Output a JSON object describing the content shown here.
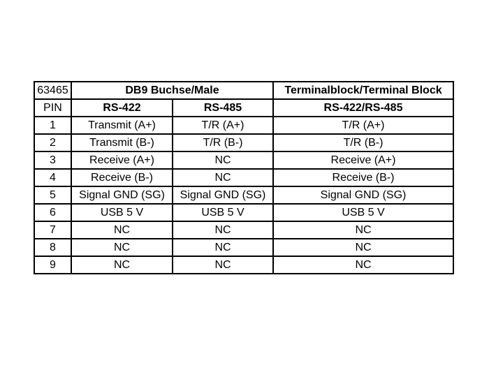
{
  "header": {
    "article": "63465",
    "db9_title": "DB9 Buchse/Male",
    "terminal_title": "Terminalblock/Terminal Block"
  },
  "subheader": {
    "pin": "PIN",
    "rs422": "RS-422",
    "rs485": "RS-485",
    "terminal": "RS-422/RS-485"
  },
  "rows": [
    {
      "pin": "1",
      "rs422": "Transmit (A+)",
      "rs485": "T/R (A+)",
      "terminal": "T/R (A+)"
    },
    {
      "pin": "2",
      "rs422": "Transmit (B-)",
      "rs485": "T/R (B-)",
      "terminal": "T/R (B-)"
    },
    {
      "pin": "3",
      "rs422": "Receive (A+)",
      "rs485": "NC",
      "terminal": "Receive (A+)"
    },
    {
      "pin": "4",
      "rs422": "Receive (B-)",
      "rs485": "NC",
      "terminal": "Receive (B-)"
    },
    {
      "pin": "5",
      "rs422": "Signal GND (SG)",
      "rs485": "Signal GND (SG)",
      "terminal": "Signal GND (SG)"
    },
    {
      "pin": "6",
      "rs422": "USB 5 V",
      "rs485": "USB 5 V",
      "terminal": "USB 5 V"
    },
    {
      "pin": "7",
      "rs422": "NC",
      "rs485": "NC",
      "terminal": "NC"
    },
    {
      "pin": "8",
      "rs422": "NC",
      "rs485": "NC",
      "terminal": "NC"
    },
    {
      "pin": "9",
      "rs422": "NC",
      "rs485": "NC",
      "terminal": "NC"
    }
  ]
}
